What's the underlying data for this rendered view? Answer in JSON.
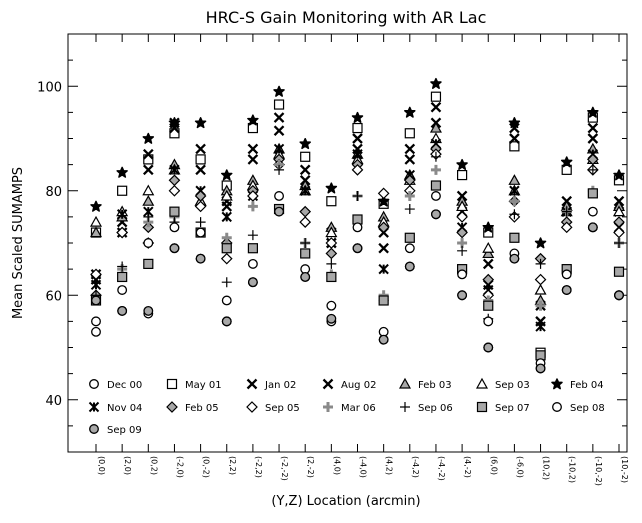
{
  "chart_data": {
    "type": "scatter",
    "title": "HRC-S Gain Monitoring with AR Lac",
    "xlabel": "(Y,Z) Location (arcmin)",
    "ylabel": "Mean Scaled SUMAMPS",
    "ylim": [
      30,
      110
    ],
    "yticks": [
      40,
      60,
      80,
      100
    ],
    "categories": [
      "(0,0)",
      "(2,0)",
      "(0,2)",
      "(-2,0)",
      "(0,-2)",
      "(2,2)",
      "(-2,2)",
      "(-2,-2)",
      "(2,-2)",
      "(4,0)",
      "(-4,0)",
      "(4,2)",
      "(-4,2)",
      "(-4,-2)",
      "(4,-2)",
      "(6,0)",
      "(-6,0)",
      "(10,2)",
      "(-10,2)",
      "(-10,-2)",
      "(10,-2)"
    ],
    "series": [
      {
        "name": "Dec 00",
        "marker": "circle",
        "values": [
          53,
          57,
          56.5,
          69,
          67,
          55,
          62.5,
          null,
          63.5,
          55,
          69,
          51.5,
          65.5,
          75.5,
          60,
          50,
          67,
          46,
          61,
          73,
          60
        ]
      },
      {
        "name": "May 01",
        "marker": "square",
        "values": [
          72,
          80,
          86,
          91,
          86,
          81,
          92,
          96.5,
          86.5,
          78,
          92,
          77.5,
          91,
          98,
          83,
          72,
          88.5,
          49,
          84,
          94,
          82
        ]
      },
      {
        "name": "Jan 02",
        "marker": "x",
        "values": [
          64,
          74,
          87,
          93,
          88,
          78,
          88,
          94,
          84,
          70,
          88,
          72,
          88,
          96,
          79,
          66,
          90,
          58,
          78,
          92,
          78
        ]
      },
      {
        "name": "Aug 02",
        "marker": "x",
        "values": [
          63,
          72,
          84,
          92,
          84,
          77,
          86,
          91.5,
          82,
          72,
          90,
          69,
          86,
          93,
          76,
          62,
          92,
          55,
          76,
          90,
          76
        ]
      },
      {
        "name": "Feb 03",
        "marker": "triangle-filled",
        "values": [
          72,
          75,
          78,
          85,
          78,
          80,
          82,
          88,
          81,
          73,
          87,
          75,
          83,
          92,
          78,
          68,
          82,
          59,
          77,
          88,
          77
        ]
      },
      {
        "name": "Sep 03",
        "marker": "triangle",
        "values": [
          74,
          76,
          80,
          84,
          78,
          79,
          81,
          87,
          80,
          72,
          86,
          74,
          82,
          90,
          77,
          69,
          80,
          61,
          76,
          86,
          76
        ]
      },
      {
        "name": "Feb 04",
        "marker": "star",
        "values": [
          77,
          83.5,
          90,
          93,
          93,
          83,
          93.5,
          99,
          89,
          80.5,
          94,
          78,
          95,
          100.5,
          85,
          73,
          93,
          70,
          85.5,
          95,
          83
        ]
      },
      {
        "name": "Nov 04",
        "marker": "asterisk",
        "values": [
          62,
          75.5,
          76,
          84,
          80,
          75,
          79,
          88,
          80,
          70,
          87,
          65,
          83,
          89,
          73,
          61,
          80,
          54,
          76,
          87,
          73
        ]
      },
      {
        "name": "Feb 05",
        "marker": "diamond-filled",
        "values": [
          60,
          72,
          73,
          82,
          79,
          70,
          80,
          86,
          76,
          68,
          85,
          73,
          82,
          88,
          72,
          63,
          78,
          67,
          74,
          86,
          74
        ]
      },
      {
        "name": "Sep 05",
        "marker": "diamond",
        "values": [
          64,
          72,
          70,
          80,
          77,
          67,
          79,
          85,
          74,
          70,
          84,
          79.5,
          80,
          87,
          75,
          60,
          75,
          63,
          73,
          84,
          72
        ]
      },
      {
        "name": "Mar 06",
        "marker": "plus-gray",
        "values": [
          59,
          65,
          74,
          75,
          72,
          71,
          77,
          85,
          70,
          64,
          79,
          60,
          79,
          84,
          70,
          59,
          78,
          58,
          76,
          80,
          70
        ]
      },
      {
        "name": "Sep 06",
        "marker": "plus",
        "values": [
          60,
          65.5,
          75,
          74,
          74,
          62.5,
          71.5,
          84,
          70,
          66,
          79,
          59,
          76.5,
          86.5,
          68.5,
          55.5,
          75.5,
          66,
          76,
          84,
          70
        ]
      },
      {
        "name": "Sep 07",
        "marker": "square-filled",
        "values": [
          59,
          63.5,
          66,
          76,
          72,
          69,
          69,
          76.5,
          68,
          63.5,
          74.5,
          59,
          71,
          81,
          65,
          58,
          71,
          48.5,
          65,
          79.5,
          64.5
        ]
      },
      {
        "name": "Sep 08",
        "marker": "circle",
        "values": [
          55,
          61,
          70,
          73,
          72,
          59,
          66,
          79,
          65,
          58,
          73,
          53,
          69,
          79,
          64,
          55,
          68,
          47,
          64,
          76,
          60
        ]
      },
      {
        "name": "Sep 09",
        "marker": "circle-filled",
        "values": [
          59,
          57,
          57,
          69,
          67,
          55,
          62.5,
          76,
          63.5,
          55.5,
          69,
          51.5,
          65.5,
          75.5,
          60,
          50,
          67,
          46,
          61,
          73,
          60
        ]
      }
    ]
  },
  "legend_rows": [
    [
      "Dec 00",
      "May 01",
      "Jan 02",
      "Aug 02",
      "Feb 03",
      "Sep 03",
      "Feb 04"
    ],
    [
      "Nov 04",
      "Feb 05",
      "Sep 05",
      "Mar 06",
      "Sep 06",
      "Sep 07",
      "Sep 08"
    ],
    [
      "Sep 09"
    ]
  ]
}
